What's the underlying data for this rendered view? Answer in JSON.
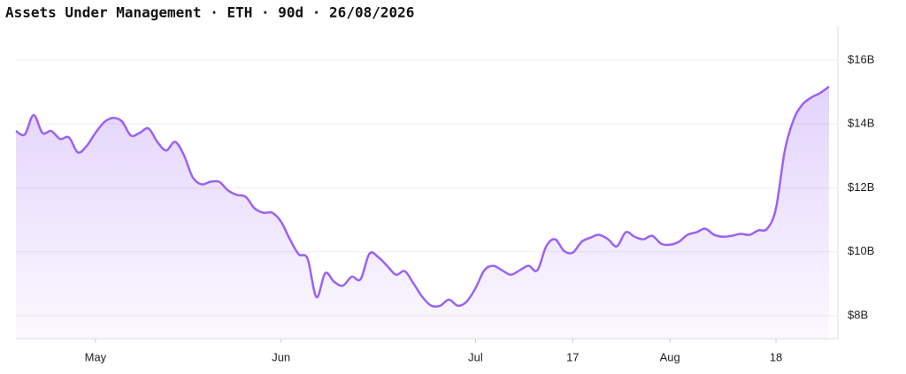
{
  "chart_data": {
    "type": "area",
    "title": "Assets Under Management · ETH · 90d · 26/08/2026",
    "categories": [
      null,
      null,
      null,
      null,
      null,
      null,
      null,
      null,
      null,
      "May",
      null,
      null,
      null,
      null,
      null,
      null,
      null,
      null,
      null,
      null,
      null,
      null,
      null,
      null,
      null,
      null,
      null,
      null,
      null,
      null,
      "Jun",
      null,
      null,
      null,
      null,
      null,
      null,
      null,
      null,
      null,
      null,
      null,
      null,
      null,
      null,
      null,
      null,
      null,
      null,
      null,
      null,
      null,
      "Jul",
      null,
      null,
      null,
      null,
      null,
      null,
      null,
      null,
      null,
      null,
      "17",
      null,
      null,
      null,
      null,
      null,
      null,
      null,
      null,
      null,
      null,
      "Aug",
      null,
      null,
      null,
      null,
      null,
      null,
      null,
      null,
      null,
      null,
      null,
      "18",
      null,
      null,
      null,
      null,
      null,
      null
    ],
    "values": [
      13.78,
      13.67,
      14.28,
      13.72,
      13.78,
      13.53,
      13.58,
      13.11,
      13.31,
      13.72,
      14.06,
      14.19,
      14.08,
      13.64,
      13.72,
      13.86,
      13.44,
      13.17,
      13.44,
      13.03,
      12.33,
      12.11,
      12.19,
      12.19,
      11.92,
      11.78,
      11.72,
      11.36,
      11.22,
      11.22,
      10.94,
      10.39,
      9.92,
      9.78,
      8.58,
      9.33,
      9.06,
      8.94,
      9.22,
      9.14,
      9.94,
      9.83,
      9.56,
      9.28,
      9.39,
      9.0,
      8.58,
      8.31,
      8.31,
      8.5,
      8.31,
      8.44,
      8.86,
      9.42,
      9.56,
      9.42,
      9.28,
      9.42,
      9.56,
      9.42,
      10.17,
      10.39,
      10.03,
      9.97,
      10.31,
      10.44,
      10.53,
      10.39,
      10.17,
      10.61,
      10.47,
      10.39,
      10.5,
      10.25,
      10.22,
      10.31,
      10.53,
      10.61,
      10.72,
      10.53,
      10.47,
      10.5,
      10.56,
      10.53,
      10.67,
      10.72,
      11.36,
      13.17,
      14.14,
      14.61,
      14.83,
      14.97,
      15.17
    ],
    "color": "#9b62f3",
    "ylim": [
      7.28,
      17.05
    ],
    "yticks": [
      {
        "value": 8,
        "label": "$8B"
      },
      {
        "value": 10,
        "label": "$10B"
      },
      {
        "value": 12,
        "label": "$12B"
      },
      {
        "value": 14,
        "label": "$14B"
      },
      {
        "value": 16,
        "label": "$16B"
      }
    ],
    "grid": true
  }
}
